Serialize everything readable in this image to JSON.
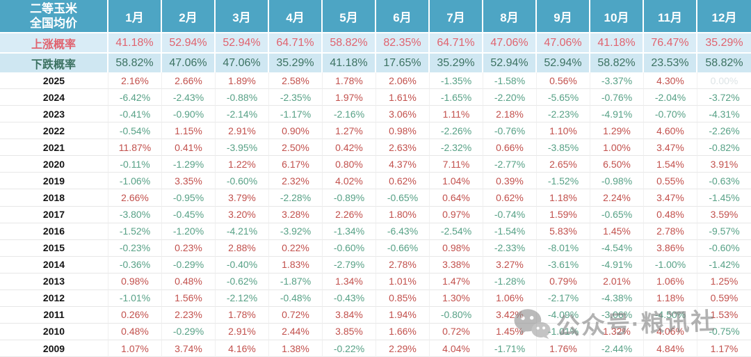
{
  "chart_data": {
    "type": "table",
    "title": "二等玉米全国均价",
    "title_line1": "二等玉米",
    "title_line2": "全国均价",
    "columns": [
      "1月",
      "2月",
      "3月",
      "4月",
      "5月",
      "6月",
      "7月",
      "8月",
      "9月",
      "10月",
      "11月",
      "12月"
    ],
    "up_probability": {
      "label": "上涨概率",
      "values": [
        "41.18%",
        "52.94%",
        "52.94%",
        "64.71%",
        "58.82%",
        "82.35%",
        "64.71%",
        "47.06%",
        "47.06%",
        "41.18%",
        "76.47%",
        "35.29%"
      ]
    },
    "down_probability": {
      "label": "下跌概率",
      "values": [
        "58.82%",
        "47.06%",
        "47.06%",
        "35.29%",
        "41.18%",
        "17.65%",
        "35.29%",
        "52.94%",
        "52.94%",
        "58.82%",
        "23.53%",
        "58.82%"
      ]
    },
    "year_rows": [
      {
        "year": "2025",
        "values": [
          "2.16%",
          "2.66%",
          "1.89%",
          "2.58%",
          "1.78%",
          "2.06%",
          "-1.35%",
          "-1.58%",
          "0.56%",
          "-3.37%",
          "4.30%",
          "0.00%"
        ]
      },
      {
        "year": "2024",
        "values": [
          "-6.42%",
          "-2.43%",
          "-0.88%",
          "-2.35%",
          "1.97%",
          "1.61%",
          "-1.65%",
          "-2.20%",
          "-5.65%",
          "-0.76%",
          "-2.04%",
          "-3.72%"
        ]
      },
      {
        "year": "2023",
        "values": [
          "-0.41%",
          "-0.90%",
          "-2.14%",
          "-1.17%",
          "-2.16%",
          "3.06%",
          "1.11%",
          "2.18%",
          "-2.23%",
          "-4.91%",
          "-0.70%",
          "-4.31%"
        ]
      },
      {
        "year": "2022",
        "values": [
          "-0.54%",
          "1.15%",
          "2.91%",
          "0.90%",
          "1.27%",
          "0.98%",
          "-2.26%",
          "-0.76%",
          "1.10%",
          "1.29%",
          "4.60%",
          "-2.26%"
        ]
      },
      {
        "year": "2021",
        "values": [
          "11.87%",
          "0.41%",
          "-3.95%",
          "2.50%",
          "0.42%",
          "2.63%",
          "-2.32%",
          "0.66%",
          "-3.85%",
          "1.00%",
          "3.47%",
          "-0.82%"
        ]
      },
      {
        "year": "2020",
        "values": [
          "-0.11%",
          "-1.29%",
          "1.22%",
          "6.17%",
          "0.80%",
          "4.37%",
          "7.11%",
          "-2.77%",
          "2.65%",
          "6.50%",
          "1.54%",
          "3.91%"
        ]
      },
      {
        "year": "2019",
        "values": [
          "-1.06%",
          "3.35%",
          "-0.60%",
          "2.32%",
          "4.02%",
          "0.62%",
          "1.04%",
          "0.39%",
          "-1.52%",
          "-0.98%",
          "0.55%",
          "-0.63%"
        ]
      },
      {
        "year": "2018",
        "values": [
          "2.66%",
          "-0.95%",
          "3.79%",
          "-2.28%",
          "-0.89%",
          "-0.65%",
          "0.64%",
          "0.62%",
          "1.18%",
          "2.24%",
          "3.47%",
          "-1.45%"
        ]
      },
      {
        "year": "2017",
        "values": [
          "-3.80%",
          "-0.45%",
          "3.20%",
          "3.28%",
          "2.26%",
          "1.80%",
          "0.97%",
          "-0.74%",
          "1.59%",
          "-0.65%",
          "0.48%",
          "3.59%"
        ]
      },
      {
        "year": "2016",
        "values": [
          "-1.52%",
          "-1.20%",
          "-4.21%",
          "-3.92%",
          "-1.34%",
          "-6.43%",
          "-2.54%",
          "-1.54%",
          "5.83%",
          "1.45%",
          "2.78%",
          "-9.57%"
        ]
      },
      {
        "year": "2015",
        "values": [
          "-0.23%",
          "0.23%",
          "2.88%",
          "0.22%",
          "-0.60%",
          "-0.66%",
          "0.98%",
          "-2.33%",
          "-8.01%",
          "-4.54%",
          "3.86%",
          "-0.60%"
        ]
      },
      {
        "year": "2014",
        "values": [
          "-0.36%",
          "-0.29%",
          "-0.40%",
          "1.83%",
          "-2.79%",
          "2.78%",
          "3.38%",
          "3.27%",
          "-3.61%",
          "-4.91%",
          "-1.00%",
          "-1.42%"
        ]
      },
      {
        "year": "2013",
        "values": [
          "0.98%",
          "0.48%",
          "-0.62%",
          "-1.87%",
          "1.34%",
          "1.01%",
          "1.47%",
          "-1.28%",
          "0.79%",
          "2.01%",
          "1.06%",
          "1.25%"
        ]
      },
      {
        "year": "2012",
        "values": [
          "-1.01%",
          "1.56%",
          "-2.12%",
          "-0.48%",
          "-0.43%",
          "0.85%",
          "1.30%",
          "1.06%",
          "-2.17%",
          "-4.38%",
          "1.18%",
          "0.59%"
        ]
      },
      {
        "year": "2011",
        "values": [
          "0.26%",
          "2.23%",
          "1.78%",
          "0.72%",
          "3.84%",
          "1.94%",
          "-0.80%",
          "3.42%",
          "-4.09%",
          "-3.06%",
          "-4.50%",
          "1.53%"
        ]
      },
      {
        "year": "2010",
        "values": [
          "0.48%",
          "-0.29%",
          "2.91%",
          "2.44%",
          "3.85%",
          "1.66%",
          "0.72%",
          "1.45%",
          "-1.01%",
          "1.32%",
          "4.06%",
          "-0.75%"
        ]
      },
      {
        "year": "2009",
        "values": [
          "1.07%",
          "3.74%",
          "4.16%",
          "1.38%",
          "-0.22%",
          "2.29%",
          "4.04%",
          "-1.71%",
          "1.76%",
          "-2.44%",
          "4.84%",
          "1.17%"
        ]
      }
    ]
  },
  "watermark": {
    "icon": "wechat-icon",
    "text": "公众号·粮讯社"
  },
  "colors": {
    "header_bg": "#4da5c4",
    "up_bg": "#d9ecf6",
    "down_bg": "#cfe7f2",
    "up_text": "#e0636f",
    "down_text": "#3c7262",
    "pos": "#c2504c",
    "neg": "#57a186",
    "zero": "#dde4e6",
    "grid_line": "#e7e7e7",
    "vline": "#f0f0f0"
  }
}
